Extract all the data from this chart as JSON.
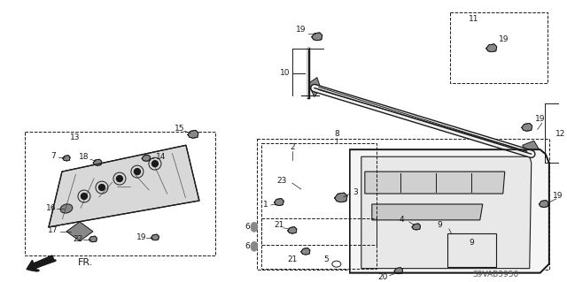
{
  "bg_color": "#ffffff",
  "line_color": "#1a1a1a",
  "diagram_code": "S9VAB3950"
}
